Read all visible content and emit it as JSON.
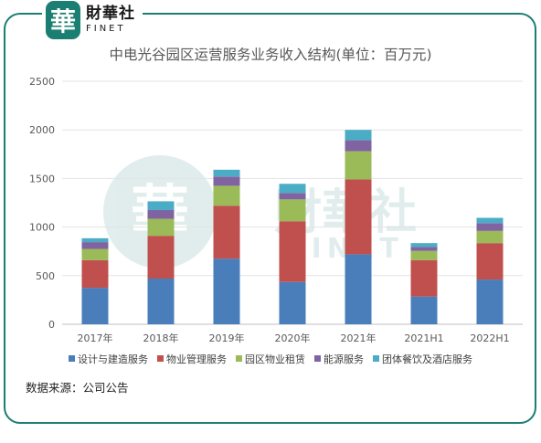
{
  "brand": {
    "cn": "財華社",
    "en": "FINET",
    "mark": "華"
  },
  "watermark": {
    "cn": "財華社",
    "en": "FINET",
    "mark": "華"
  },
  "source_note": "数据来源：公司公告",
  "colors": {
    "frame": "#1a7e72",
    "series": [
      "#4a7ebb",
      "#c0504d",
      "#9bbb59",
      "#8064a2",
      "#4bacc6"
    ]
  },
  "chart_data": {
    "type": "bar",
    "stacked": true,
    "title": "中电光谷园区运营服务业务收入结构(单位：百万元)",
    "categories": [
      "2017年",
      "2018年",
      "2019年",
      "2020年",
      "2021年",
      "2021H1",
      "2022H1"
    ],
    "ylim": [
      0,
      2500
    ],
    "yticks": [
      0,
      500,
      1000,
      1500,
      2000,
      2500
    ],
    "grid": true,
    "legend_position": "bottom",
    "series": [
      {
        "name": "设计与建造服务",
        "values": [
          375,
          470,
          675,
          435,
          720,
          285,
          460
        ]
      },
      {
        "name": "物业管理服务",
        "values": [
          285,
          440,
          545,
          625,
          770,
          375,
          375
        ]
      },
      {
        "name": "园区物业租赁",
        "values": [
          115,
          175,
          205,
          225,
          290,
          95,
          125
        ]
      },
      {
        "name": "能源服务",
        "values": [
          70,
          90,
          95,
          65,
          115,
          40,
          80
        ]
      },
      {
        "name": "团体餐饮及酒店服务",
        "values": [
          40,
          90,
          70,
          95,
          105,
          40,
          55
        ]
      }
    ]
  }
}
